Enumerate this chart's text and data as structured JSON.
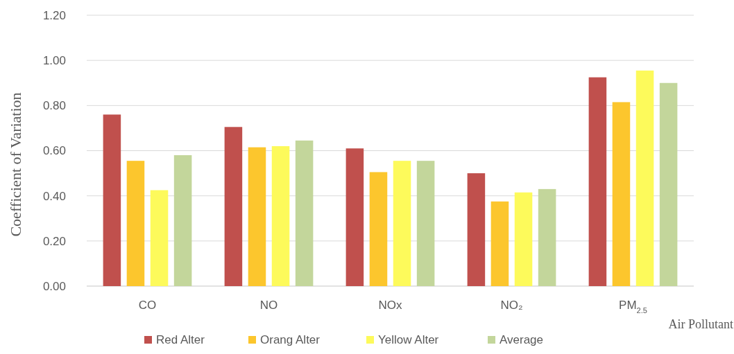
{
  "chart_data": {
    "type": "bar",
    "xlabel": "Air Pollutant",
    "ylabel": "Coefficient of Variation",
    "categories": [
      "CO",
      "NO",
      "NOx",
      "NO₂",
      "PM$_{2.5}$"
    ],
    "series": [
      {
        "name": "Red Alter",
        "color": "#c0504d",
        "values": [
          0.76,
          0.705,
          0.61,
          0.5,
          0.925
        ]
      },
      {
        "name": "Orang Alter",
        "color": "#fcc62d",
        "values": [
          0.555,
          0.615,
          0.505,
          0.375,
          0.815
        ]
      },
      {
        "name": "Yellow Alter",
        "color": "#fdfa5b",
        "values": [
          0.425,
          0.62,
          0.555,
          0.415,
          0.955
        ]
      },
      {
        "name": "Average",
        "color": "#c3d69b",
        "values": [
          0.58,
          0.645,
          0.555,
          0.43,
          0.9
        ]
      }
    ],
    "ylim": [
      0,
      1.2
    ],
    "yticks": [
      {
        "value": 0,
        "label": "0.00"
      },
      {
        "value": 0.2,
        "label": "0.20"
      },
      {
        "value": 0.4,
        "label": "0.40"
      },
      {
        "value": 0.6,
        "label": "0.60"
      },
      {
        "value": 0.8,
        "label": "0.80"
      },
      {
        "value": 1,
        "label": "1.00"
      },
      {
        "value": 1.2,
        "label": "1.20"
      }
    ],
    "grid": "y",
    "legend": "bottom"
  }
}
